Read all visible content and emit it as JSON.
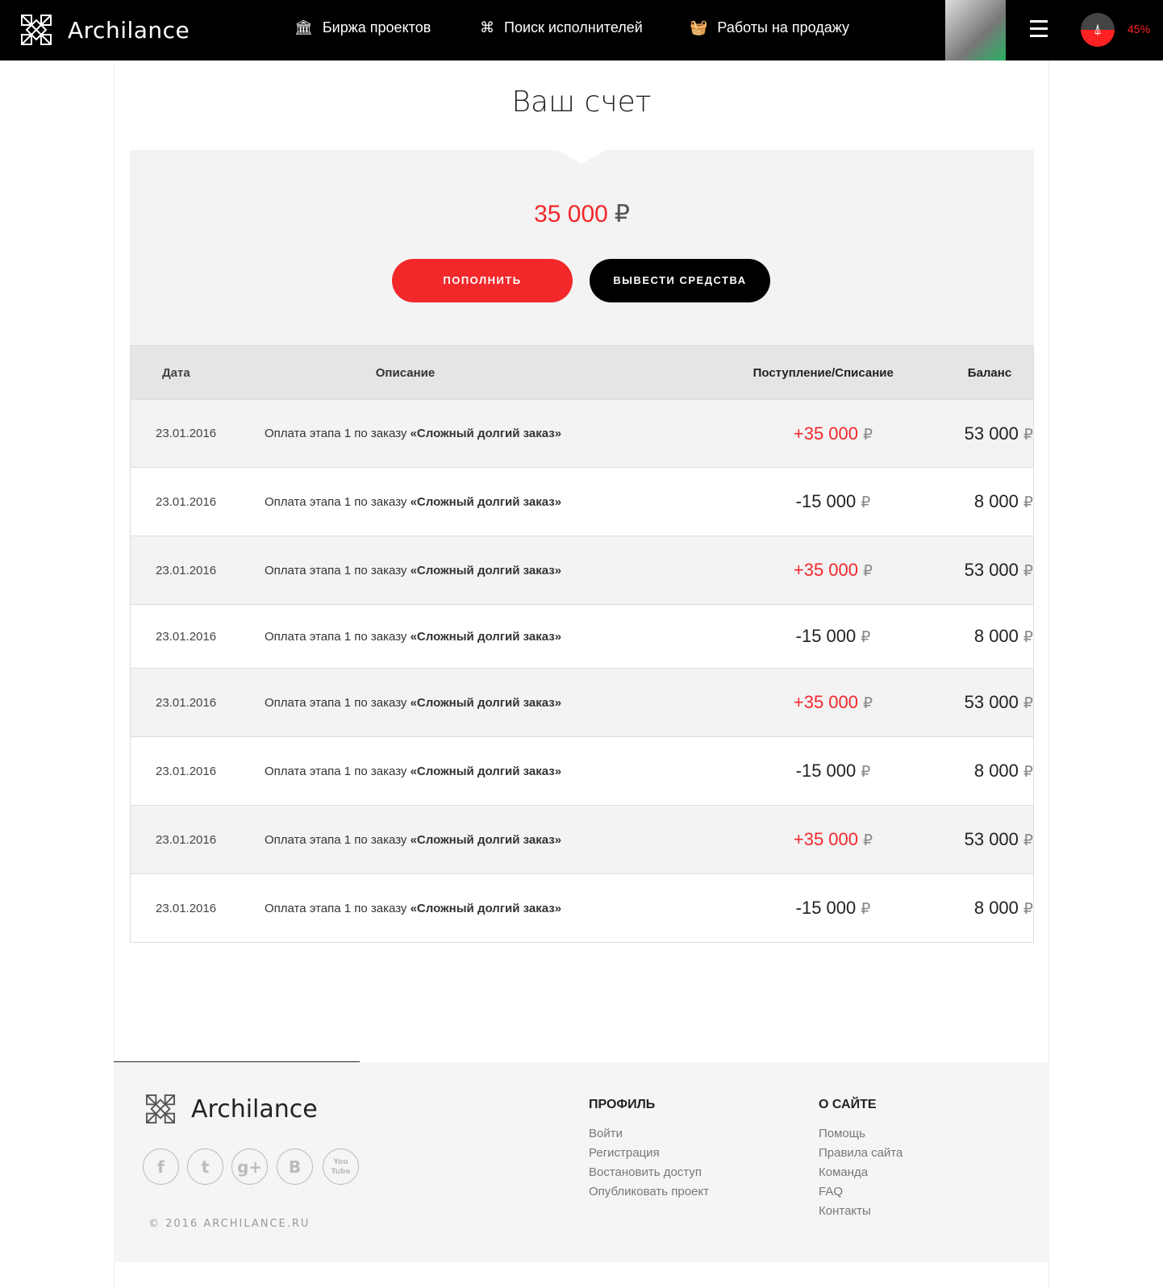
{
  "header": {
    "brand": "Archilance",
    "nav": [
      {
        "label": "Биржа проектов",
        "icon": "column-icon"
      },
      {
        "label": "Поиск исполнителей",
        "icon": "binoculars-icon"
      },
      {
        "label": "Работы на продажу",
        "icon": "basket-icon"
      }
    ],
    "progress_percent": "45%",
    "progress_value": 45
  },
  "page": {
    "title": "Ваш счет",
    "balance": "35 000",
    "currency": "₽",
    "topup_label": "ПОПОЛНИТЬ",
    "withdraw_label": "ВЫВЕСТИ СРЕДСТВА"
  },
  "table": {
    "headers": [
      "Дата",
      "Описание",
      "Поступление/Списание",
      "Баланс"
    ],
    "rows": [
      {
        "date": "23.01.2016",
        "desc": "Оплата этапа 1 по заказу ",
        "order": "«Сложный долгий заказ»",
        "amount": "+35 000",
        "balance": "53 000"
      },
      {
        "date": "23.01.2016",
        "desc": "Оплата этапа 1 по заказу ",
        "order": "«Сложный долгий заказ»",
        "amount": "-15 000",
        "balance": "8 000"
      },
      {
        "date": "23.01.2016",
        "desc": "Оплата этапа 1 по заказу ",
        "order": "«Сложный долгий заказ»",
        "amount": "+35 000",
        "balance": "53 000"
      },
      {
        "date": "23.01.2016",
        "desc": "Оплата этапа 1 по заказу ",
        "order": "«Сложный долгий заказ»",
        "amount": "-15 000",
        "balance": "8 000"
      },
      {
        "date": "23.01.2016",
        "desc": "Оплата этапа 1 по заказу ",
        "order": "«Сложный долгий заказ»",
        "amount": "+35 000",
        "balance": "53 000"
      },
      {
        "date": "23.01.2016",
        "desc": "Оплата этапа 1 по заказу ",
        "order": "«Сложный долгий заказ»",
        "amount": "-15 000",
        "balance": "8 000"
      },
      {
        "date": "23.01.2016",
        "desc": "Оплата этапа 1 по заказу ",
        "order": "«Сложный долгий заказ»",
        "amount": "+35 000",
        "balance": "53 000"
      },
      {
        "date": "23.01.2016",
        "desc": "Оплата этапа 1 по заказу ",
        "order": "«Сложный долгий заказ»",
        "amount": "-15 000",
        "balance": "8 000"
      }
    ]
  },
  "footer": {
    "brand": "Archilance",
    "copyright": "© 2016 ARCHILANCE.RU",
    "social": [
      "f",
      "t",
      "g+",
      "B",
      "You Tube"
    ],
    "profile": {
      "title": "ПРОФИЛЬ",
      "links": [
        "Войти",
        "Регистрация",
        "Востановить доступ",
        "Опубликовать проект"
      ]
    },
    "about": {
      "title": "О САЙТЕ",
      "links": [
        "Помощь",
        "Правила сайта",
        "Команда",
        "FAQ",
        "Контакты"
      ]
    }
  },
  "colors": {
    "accent": "#f2282b",
    "dark": "#000000"
  }
}
